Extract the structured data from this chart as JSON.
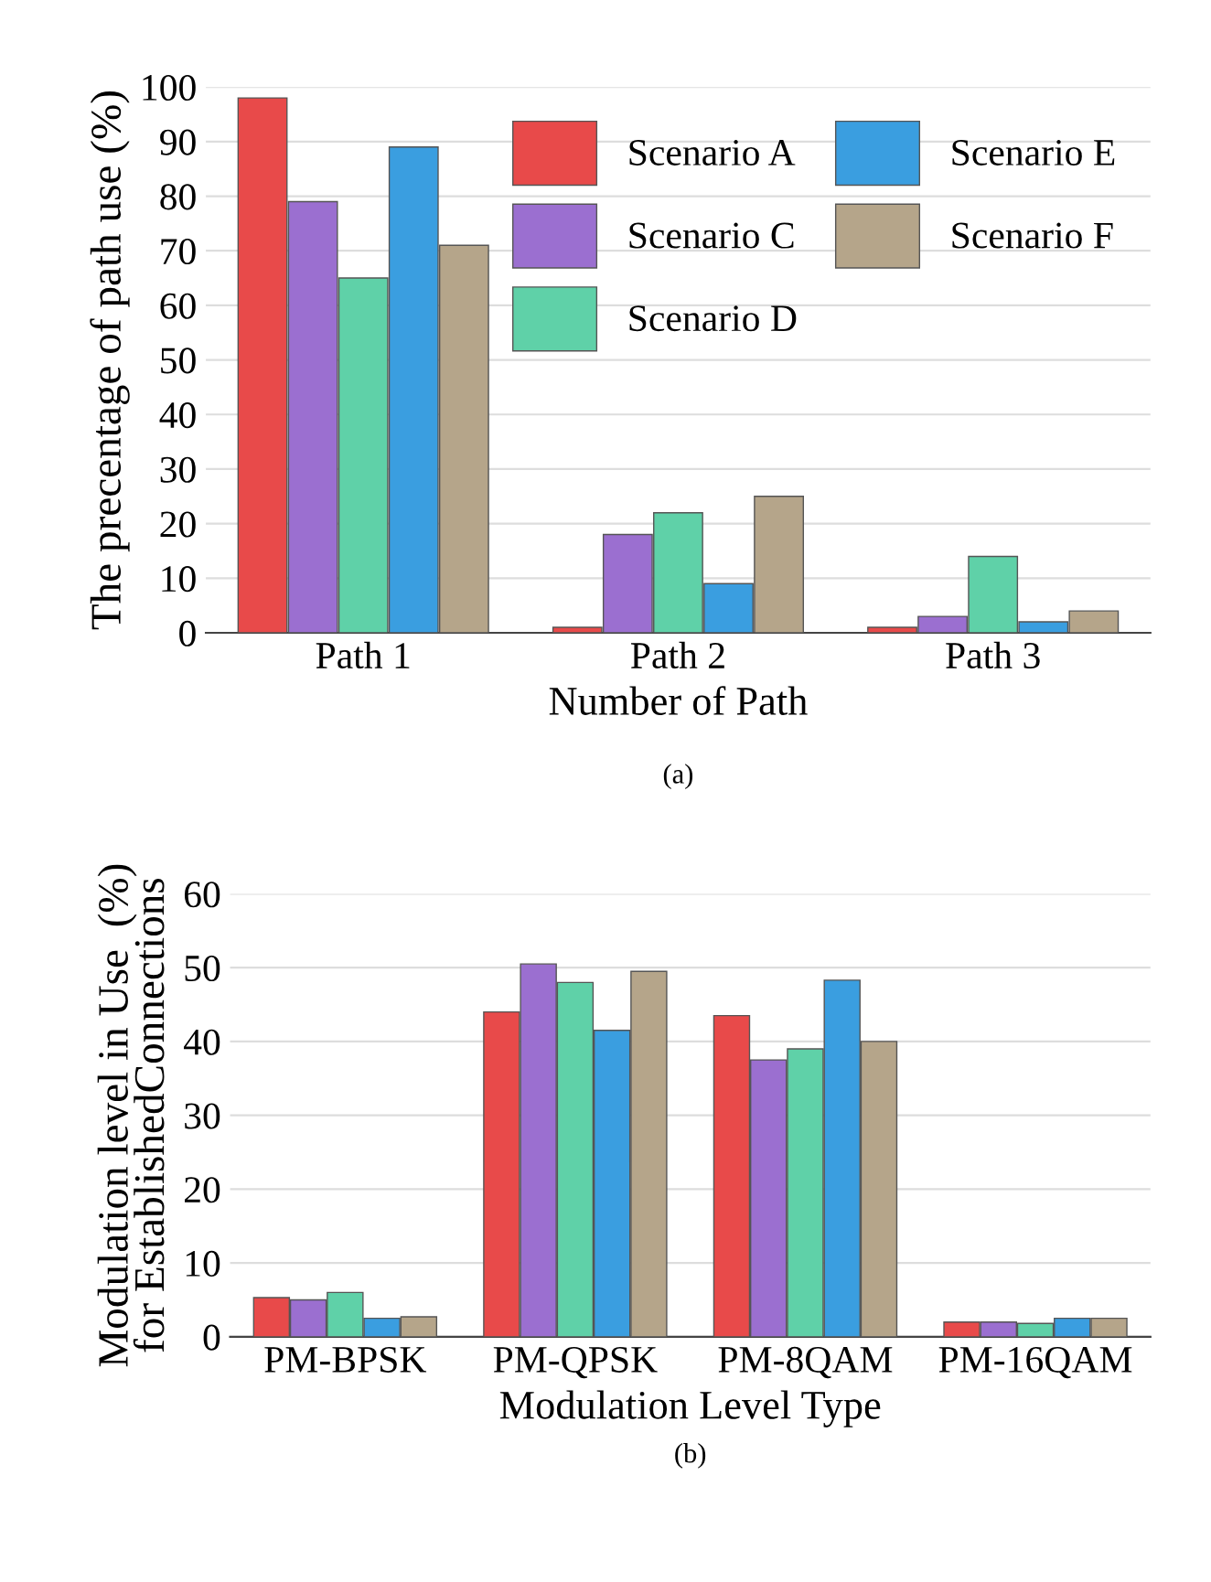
{
  "chart_data": [
    {
      "type": "bar",
      "categories": [
        "Path 1",
        "Path 2",
        "Path 3"
      ],
      "xlabel": "Number of Path",
      "ylabel": "The precentage of path use (%)",
      "annotations": [
        "(a)"
      ],
      "ylim": [
        0,
        100
      ],
      "yticks": [
        0,
        10,
        20,
        30,
        40,
        50,
        60,
        70,
        80,
        90,
        100
      ],
      "grid": "y",
      "legend": "top right",
      "series": [
        {
          "name": "Scenario A",
          "color": "#e84a4a",
          "values": [
            98,
            1,
            1
          ]
        },
        {
          "name": "Scenario C",
          "color": "#9b6fd0",
          "values": [
            79,
            18,
            3
          ]
        },
        {
          "name": "Scenario D",
          "color": "#5fd1a8",
          "values": [
            65,
            22,
            14
          ]
        },
        {
          "name": "Scenario E",
          "color": "#3a9ee0",
          "values": [
            89,
            9,
            2
          ]
        },
        {
          "name": "Scenario F",
          "color": "#b5a58a",
          "values": [
            71,
            25,
            4
          ]
        }
      ]
    },
    {
      "type": "bar",
      "categories": [
        "PM-BPSK",
        "PM-QPSK",
        "PM-8QAM",
        "PM-16QAM"
      ],
      "xlabel": "Modulation Level Type",
      "ylabel": "Modulation level in Use  (%)\nfor EstablishedConnections",
      "annotations": [
        "(b)"
      ],
      "ylim": [
        0,
        60
      ],
      "yticks": [
        0,
        10,
        20,
        30,
        40,
        50,
        60
      ],
      "grid": "y",
      "series": [
        {
          "color": "#e84a4a",
          "values": [
            5.3,
            44,
            43.5,
            2
          ]
        },
        {
          "color": "#9b6fd0",
          "values": [
            5,
            50.5,
            37.5,
            2
          ]
        },
        {
          "color": "#5fd1a8",
          "values": [
            6,
            48,
            39,
            1.8
          ]
        },
        {
          "color": "#3a9ee0",
          "values": [
            2.5,
            41.5,
            48.3,
            2.5
          ]
        },
        {
          "color": "#b5a58a",
          "values": [
            2.7,
            49.5,
            40,
            2.5
          ]
        }
      ]
    }
  ]
}
